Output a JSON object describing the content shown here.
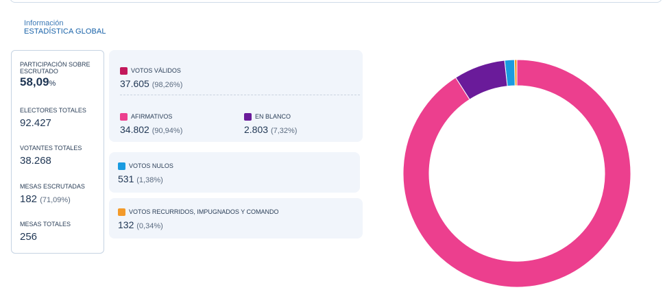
{
  "breadcrumb": {
    "small": "Información",
    "main": "ESTADÍSTICA GLOBAL"
  },
  "summary": {
    "participacion": {
      "label": "PARTICIPACIÓN SOBRE ESCRUTADO",
      "value": "58,09",
      "unit": "%"
    },
    "electores": {
      "label": "ELECTORES TOTALES",
      "value": "92.427"
    },
    "votantes": {
      "label": "VOTANTES TOTALES",
      "value": "38.268"
    },
    "mesas_escrutadas": {
      "label": "MESAS ESCRUTADAS",
      "value": "182",
      "pct": "(71,09%)"
    },
    "mesas_totales": {
      "label": "MESAS TOTALES",
      "value": "256"
    }
  },
  "votos": {
    "validos": {
      "label": "VOTOS VÁLIDOS",
      "value": "37.605",
      "pct": "(98,26%)",
      "color": "#c2185b"
    },
    "afirmativos": {
      "label": "AFIRMATIVOS",
      "value": "34.802",
      "pct": "(90,94%)",
      "color": "#ec3f8e"
    },
    "blanco": {
      "label": "EN BLANCO",
      "value": "2.803",
      "pct": "(7,32%)",
      "color": "#6a1b9a"
    },
    "nulos": {
      "label": "VOTOS NULOS",
      "value": "531",
      "pct": "(1,38%)",
      "color": "#1a9be0"
    },
    "recurridos": {
      "label": "VOTOS RECURRIDOS, IMPUGNADOS Y COMANDO",
      "value": "132",
      "pct": "(0,34%)",
      "color": "#f39a2a"
    }
  },
  "chart_data": {
    "type": "pie",
    "donut": true,
    "categories": [
      "AFIRMATIVOS",
      "EN BLANCO",
      "VOTOS NULOS",
      "VOTOS RECURRIDOS, IMPUGNADOS Y COMANDO"
    ],
    "values": [
      34802,
      2803,
      531,
      132
    ],
    "colors": [
      "#ec3f8e",
      "#6a1b9a",
      "#1a9be0",
      "#f39a2a"
    ]
  }
}
